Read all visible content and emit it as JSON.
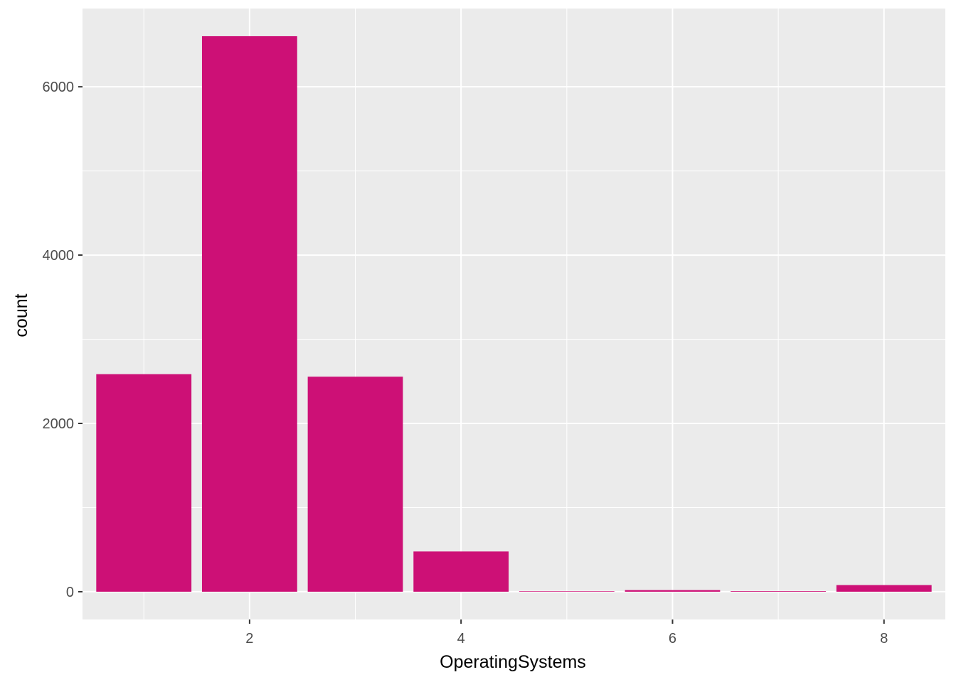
{
  "chart_data": {
    "type": "bar",
    "title": "",
    "xlabel": "OperatingSystems",
    "ylabel": "count",
    "categories": [
      1,
      2,
      3,
      4,
      5,
      6,
      7,
      8
    ],
    "values": [
      2585,
      6601,
      2555,
      478,
      6,
      19,
      7,
      79
    ],
    "xlim": [
      0.42,
      8.58
    ],
    "ylim": [
      -330,
      6930
    ],
    "x_major_ticks": [
      2,
      4,
      6,
      8
    ],
    "x_minor_ticks": [
      1,
      3,
      5,
      7
    ],
    "y_major_ticks": [
      0,
      2000,
      4000,
      6000
    ],
    "y_minor_ticks": [
      1000,
      3000,
      5000
    ],
    "x_tick_labels": [
      "2",
      "4",
      "6",
      "8"
    ],
    "y_tick_labels": [
      "0",
      "2000",
      "4000",
      "6000"
    ],
    "bar_color": "#CD1076",
    "panel_background": "#EBEBEB",
    "grid_color": "#FFFFFF",
    "tick_color": "#333333",
    "grid": true,
    "legend": "none"
  }
}
